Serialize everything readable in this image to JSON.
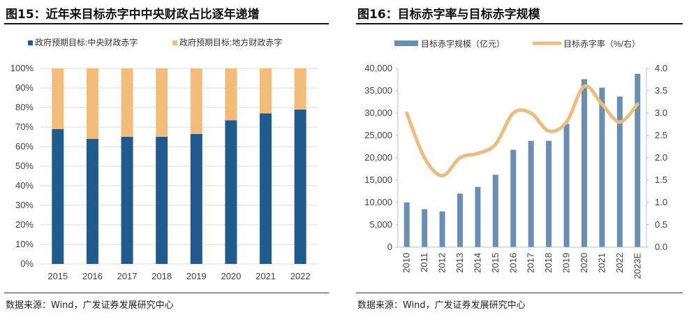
{
  "left_panel": {
    "title": "图15：近年来目标赤字中中央财政占比逐年递增",
    "source": "数据来源：Wind，广发证券发展研究中心"
  },
  "right_panel": {
    "title": "图16：目标赤字率与目标赤字规模",
    "source": "数据来源：Wind，广发证券发展研究中心"
  },
  "colors": {
    "central": "#215A8C",
    "local": "#F2BC7B",
    "bar": "#6A8FB2",
    "line": "#EBBE7F",
    "grid": "#D9D9D9",
    "text": "#404040"
  },
  "chart_data": [
    {
      "type": "bar",
      "stacked": true,
      "percent": true,
      "title": "近年来目标赤字中中央财政占比逐年递增",
      "categories": [
        "2015",
        "2016",
        "2017",
        "2018",
        "2019",
        "2020",
        "2021",
        "2022"
      ],
      "series": [
        {
          "name": "政府预期目标:中央财政赤字",
          "values": [
            69,
            64,
            65,
            65,
            66.5,
            73.5,
            77,
            79
          ]
        },
        {
          "name": "政府预期目标:地方财政赤字",
          "values": [
            31,
            36,
            35,
            35,
            33.5,
            26.5,
            23,
            21
          ]
        }
      ],
      "ylim": [
        0,
        100
      ],
      "yticks": [
        "0%",
        "10%",
        "20%",
        "30%",
        "40%",
        "50%",
        "60%",
        "70%",
        "80%",
        "90%",
        "100%"
      ],
      "legend": "top",
      "grid": true
    },
    {
      "type": "bar+line",
      "title": "目标赤字率与目标赤字规模",
      "categories": [
        "2010",
        "2011",
        "2012",
        "2013",
        "2014",
        "2015",
        "2016",
        "2017",
        "2018",
        "2019",
        "2020",
        "2021",
        "2022",
        "2023E"
      ],
      "series": [
        {
          "name": "目标赤字规模（亿元）",
          "type": "bar",
          "axis": "left",
          "values": [
            10000,
            8500,
            8000,
            12000,
            13500,
            16200,
            21800,
            23800,
            23800,
            27600,
            37600,
            35700,
            33700,
            38800
          ]
        },
        {
          "name": "目标赤字率（%/右）",
          "type": "line",
          "axis": "right",
          "smooth": true,
          "values": [
            3.0,
            2.0,
            1.6,
            2.0,
            2.1,
            2.3,
            3.0,
            3.0,
            2.6,
            2.8,
            3.6,
            3.2,
            2.8,
            3.2
          ]
        }
      ],
      "ylim_left": [
        0,
        40000
      ],
      "yticks_left": [
        "0",
        "5,000",
        "10,000",
        "15,000",
        "20,000",
        "25,000",
        "30,000",
        "35,000",
        "40,000"
      ],
      "ylim_right": [
        0,
        4.0
      ],
      "yticks_right": [
        "0.0",
        "0.5",
        "1.0",
        "1.5",
        "2.0",
        "2.5",
        "3.0",
        "3.5",
        "4.0"
      ],
      "legend": "top",
      "grid": false
    }
  ]
}
